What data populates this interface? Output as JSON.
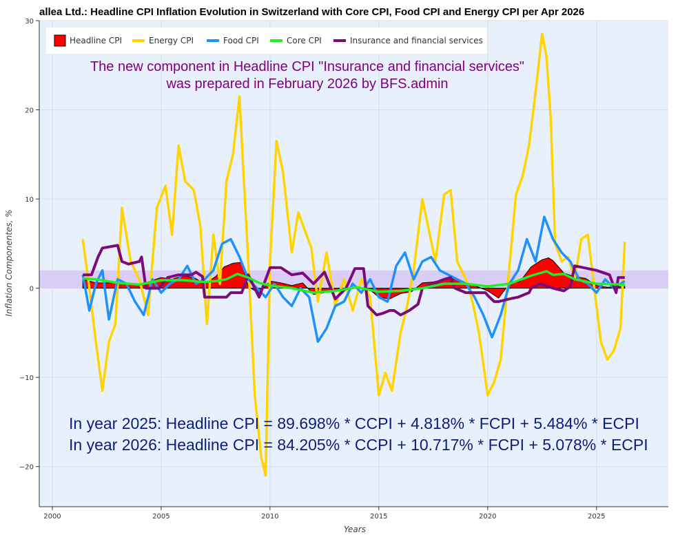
{
  "chart_data": {
    "type": "line",
    "title": "allea Ltd.: Headline CPI Inflation Evolution in Switzerland with Core CPI, Food CPI and Energy CPI per Apr 2026",
    "xlabel": "Years",
    "ylabel": "Inflation Componentes, %",
    "xlim": [
      1999.4,
      2028.3
    ],
    "ylim": [
      -24.5,
      30
    ],
    "x_ticks": [
      "2000",
      "2005",
      "2010",
      "2015",
      "2020",
      "2025"
    ],
    "y_ticks": [
      "−20",
      "−10",
      "0",
      "10",
      "20",
      "30"
    ],
    "grid": true,
    "legend_position": "top-left",
    "target_band": [
      0,
      2
    ],
    "series": [
      {
        "name": "Headline CPI",
        "color": "#ff0000",
        "style": "area",
        "x": [
          2001.4,
          2002,
          2003,
          2004,
          2004.5,
          2005,
          2005.5,
          2006,
          2006.5,
          2007,
          2007.5,
          2007.9,
          2008.3,
          2008.7,
          2009,
          2009.5,
          2010,
          2010.5,
          2011,
          2011.5,
          2012,
          2012.5,
          2013,
          2013.5,
          2014,
          2014.5,
          2015,
          2015.5,
          2016,
          2016.5,
          2017,
          2017.5,
          2018,
          2018.5,
          2019,
          2019.5,
          2020,
          2020.5,
          2021,
          2021.5,
          2022,
          2022.5,
          2022.8,
          2023,
          2023.5,
          2024,
          2024.5,
          2025,
          2025.5,
          2026.3
        ],
        "values": [
          1.0,
          0.6,
          0.6,
          0.3,
          0.8,
          1.2,
          1.0,
          1.4,
          1.2,
          0.5,
          1.3,
          2.4,
          2.8,
          2.9,
          0.2,
          -0.6,
          0.8,
          0.6,
          0.3,
          0.6,
          -0.7,
          -0.5,
          -0.3,
          0.0,
          0.0,
          0.0,
          -1.0,
          -1.2,
          -0.6,
          -0.4,
          0.6,
          0.7,
          1.0,
          1.1,
          0.6,
          0.2,
          -0.3,
          -1.1,
          0.5,
          0.8,
          2.4,
          3.2,
          3.4,
          3.1,
          1.7,
          1.3,
          1.1,
          0.3,
          0.1,
          0.2
        ]
      },
      {
        "name": "Energy CPI",
        "color": "#ffd400",
        "x": [
          2001.4,
          2001.7,
          2002,
          2002.3,
          2002.6,
          2002.9,
          2003.2,
          2003.6,
          2004,
          2004.4,
          2004.8,
          2005.2,
          2005.5,
          2005.8,
          2006.1,
          2006.5,
          2006.8,
          2007.1,
          2007.4,
          2007.7,
          2008.0,
          2008.3,
          2008.6,
          2008.8,
          2009.0,
          2009.3,
          2009.6,
          2009.8,
          2010.0,
          2010.3,
          2010.6,
          2011.0,
          2011.3,
          2011.6,
          2011.9,
          2012.2,
          2012.6,
          2013.0,
          2013.4,
          2013.8,
          2014.2,
          2014.6,
          2015.0,
          2015.3,
          2015.6,
          2016.0,
          2016.3,
          2016.6,
          2017.0,
          2017.3,
          2017.6,
          2018.0,
          2018.3,
          2018.6,
          2019.0,
          2019.3,
          2019.6,
          2020.0,
          2020.3,
          2020.6,
          2021.0,
          2021.3,
          2021.6,
          2021.9,
          2022.2,
          2022.5,
          2022.7,
          2022.9,
          2023.1,
          2023.4,
          2023.7,
          2024.0,
          2024.3,
          2024.6,
          2024.9,
          2025.2,
          2025.5,
          2025.8,
          2026.1,
          2026.3
        ],
        "values": [
          5.5,
          0.0,
          -6.0,
          -11.5,
          -6.0,
          -4.0,
          9.0,
          3.0,
          1.0,
          -3.0,
          9.0,
          11.5,
          6.0,
          16.0,
          12.0,
          11.0,
          7.0,
          -4.0,
          6.0,
          0.5,
          12.0,
          15.0,
          21.5,
          12.0,
          3.0,
          -12.0,
          -19.0,
          -21.0,
          3.0,
          16.5,
          13.0,
          4.0,
          8.5,
          6.5,
          4.5,
          -1.5,
          4.0,
          -2.0,
          1.0,
          -2.5,
          1.0,
          -1.0,
          -12.0,
          -9.5,
          -11.5,
          -5.0,
          -2.0,
          2.0,
          10.0,
          6.5,
          3.0,
          10.5,
          11.0,
          3.0,
          1.0,
          -1.5,
          -5.0,
          -12.0,
          -10.5,
          -8.0,
          2.5,
          10.5,
          12.5,
          16.0,
          22.0,
          28.5,
          26.0,
          19.0,
          5.0,
          3.0,
          3.5,
          1.0,
          5.5,
          6.0,
          0.0,
          -6.0,
          -8.0,
          -7.0,
          -4.5,
          5.2
        ]
      },
      {
        "name": "Food CPI",
        "color": "#1e90ff",
        "x": [
          2001.4,
          2001.7,
          2002.0,
          2002.3,
          2002.6,
          2003.0,
          2003.4,
          2003.8,
          2004.2,
          2004.6,
          2005.0,
          2005.4,
          2005.8,
          2006.2,
          2006.6,
          2007.0,
          2007.4,
          2007.8,
          2008.2,
          2008.6,
          2009.0,
          2009.4,
          2009.8,
          2010.2,
          2010.6,
          2011.0,
          2011.4,
          2011.8,
          2012.2,
          2012.6,
          2013.0,
          2013.4,
          2013.8,
          2014.2,
          2014.6,
          2015.0,
          2015.4,
          2015.8,
          2016.2,
          2016.6,
          2017.0,
          2017.4,
          2017.8,
          2018.2,
          2018.6,
          2019.0,
          2019.4,
          2019.8,
          2020.2,
          2020.6,
          2021.0,
          2021.4,
          2021.8,
          2022.2,
          2022.6,
          2023.0,
          2023.4,
          2023.8,
          2024.2,
          2024.6,
          2025.0,
          2025.4,
          2025.8,
          2026.3
        ],
        "values": [
          1.5,
          -2.5,
          0.5,
          2.0,
          -3.5,
          1.0,
          0.5,
          -1.5,
          -3.0,
          1.0,
          -0.5,
          0.5,
          1.0,
          2.5,
          0.5,
          1.0,
          2.0,
          5.0,
          5.5,
          3.5,
          1.0,
          0.0,
          -1.0,
          0.5,
          -1.0,
          -2.0,
          0.0,
          -1.0,
          -6.0,
          -4.5,
          -2.0,
          -1.5,
          0.5,
          -0.5,
          1.0,
          -1.0,
          -1.5,
          2.5,
          4.0,
          1.0,
          3.0,
          3.5,
          2.0,
          1.5,
          1.0,
          0.5,
          -1.0,
          -3.0,
          -5.5,
          -3.0,
          0.5,
          2.0,
          5.5,
          3.0,
          8.0,
          5.5,
          4.0,
          3.0,
          1.0,
          0.5,
          -0.5,
          1.0,
          0.0,
          0.8
        ]
      },
      {
        "name": "Core CPI",
        "color": "#22ee22",
        "x": [
          2001.4,
          2002,
          2003,
          2004,
          2005,
          2006,
          2007,
          2007.5,
          2008,
          2008.5,
          2009,
          2009.5,
          2010,
          2011,
          2012,
          2013,
          2014,
          2015,
          2016,
          2017,
          2018,
          2019,
          2020,
          2021,
          2022,
          2022.7,
          2023,
          2023.5,
          2024,
          2025,
          2026.3
        ],
        "values": [
          1.1,
          1.0,
          0.6,
          0.4,
          0.9,
          0.9,
          0.7,
          0.8,
          1.0,
          1.6,
          1.2,
          0.6,
          0.3,
          0.0,
          -0.5,
          -0.3,
          0.1,
          -0.4,
          -0.3,
          0.0,
          0.5,
          0.5,
          0.2,
          0.5,
          1.4,
          1.9,
          1.5,
          1.6,
          1.0,
          0.5,
          0.4
        ]
      },
      {
        "name": "Insurance and financial services",
        "color": "#7b0a7b",
        "x": [
          2001.4,
          2001.8,
          2002.1,
          2002.3,
          2003.0,
          2003.2,
          2003.5,
          2004.0,
          2004.1,
          2004.3,
          2004.9,
          2005.3,
          2005.8,
          2006.4,
          2006.6,
          2006.9,
          2007.0,
          2008.0,
          2008.2,
          2008.7,
          2009.0,
          2009.5,
          2010.0,
          2010.5,
          2011.0,
          2011.5,
          2012.0,
          2012.5,
          2013.0,
          2013.5,
          2013.9,
          2014.3,
          2014.5,
          2014.9,
          2015.2,
          2015.5,
          2015.7,
          2016.0,
          2016.4,
          2016.8,
          2017.0,
          2017.5,
          2018.0,
          2018.3,
          2018.5,
          2019.0,
          2019.5,
          2019.9,
          2020.0,
          2020.3,
          2020.5,
          2021.0,
          2021.4,
          2021.9,
          2022.0,
          2022.4,
          2023.0,
          2023.5,
          2023.8,
          2024.0,
          2025.0,
          2025.6,
          2025.9,
          2026.0,
          2026.3
        ],
        "values": [
          1.5,
          1.5,
          3.5,
          4.5,
          4.8,
          3.0,
          2.7,
          3.0,
          3.5,
          0.0,
          0.0,
          1.2,
          1.5,
          1.5,
          1.8,
          1.3,
          -1.0,
          -1.0,
          -0.5,
          -0.5,
          1.5,
          -1.0,
          2.3,
          2.3,
          1.5,
          1.7,
          0.5,
          1.8,
          -1.2,
          0.0,
          2.2,
          2.2,
          -2.0,
          -3.0,
          -2.8,
          -2.5,
          -2.5,
          -3.0,
          -2.5,
          -1.8,
          0.0,
          0.5,
          1.0,
          1.2,
          0.0,
          -0.5,
          -0.5,
          -0.5,
          -0.8,
          -1.5,
          -1.5,
          -1.2,
          -1.0,
          -0.5,
          0.0,
          0.5,
          0.0,
          -0.3,
          0.2,
          2.5,
          2.0,
          1.5,
          -0.5,
          1.2,
          1.2
        ]
      }
    ],
    "annotations": {
      "top_line1": "The new component in Headline CPI \"Insurance and financial services\"",
      "top_line2": "was prepared in February 2026 by BFS.admin",
      "formula_2025": "In year 2025: Headline CPI = 89.698% * CCPI +  4.818% * FCPI + 5.484% * ECPI",
      "formula_2026": "In year 2026: Headline CPI = 84.205% * CCPI + 10.717% * FCPI + 5.078% * ECPI",
      "top_color": "#800080",
      "formula_color": "#0b1f7a"
    },
    "colors": {
      "plot_background": "#e8f0fc",
      "band": "#d8c8f4"
    }
  }
}
